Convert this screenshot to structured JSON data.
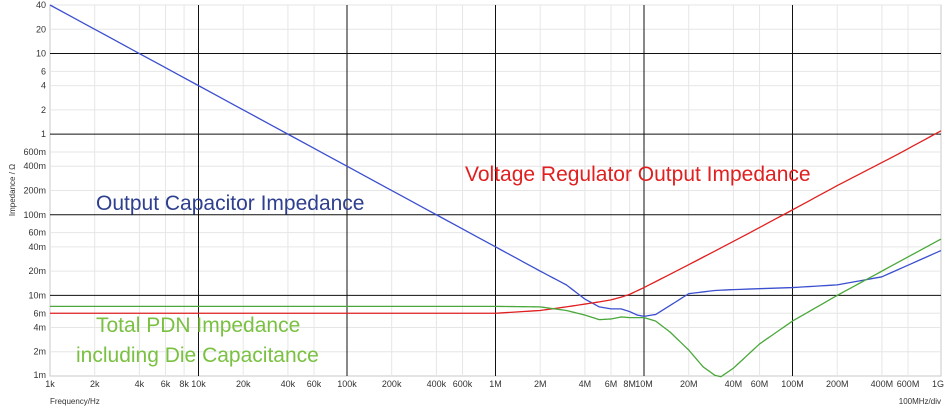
{
  "chart_data": {
    "type": "line",
    "xscale": "log",
    "yscale": "log",
    "xlabel": "Frequency/Hz",
    "ylabel": "Impedance / Ω",
    "xdiv_label": "100MHz/div",
    "xlim": [
      1000,
      1000000000
    ],
    "ylim": [
      0.001,
      40
    ],
    "x_major_ticks": [
      {
        "v": 1000,
        "label": "1k"
      },
      {
        "v": 10000,
        "label": "10k"
      },
      {
        "v": 100000,
        "label": "100k"
      },
      {
        "v": 1000000,
        "label": "1M"
      },
      {
        "v": 10000000,
        "label": "10M"
      },
      {
        "v": 100000000,
        "label": "100M"
      },
      {
        "v": 1000000000,
        "label": "1G"
      }
    ],
    "x_minor_ticks": [
      {
        "v": 2000,
        "label": "2k"
      },
      {
        "v": 4000,
        "label": "4k"
      },
      {
        "v": 6000,
        "label": "6k"
      },
      {
        "v": 8000,
        "label": "8k"
      },
      {
        "v": 20000,
        "label": "20k"
      },
      {
        "v": 40000,
        "label": "40k"
      },
      {
        "v": 60000,
        "label": "60k"
      },
      {
        "v": 200000,
        "label": "200k"
      },
      {
        "v": 400000,
        "label": "400k"
      },
      {
        "v": 600000,
        "label": "600k"
      },
      {
        "v": 2000000,
        "label": "2M"
      },
      {
        "v": 4000000,
        "label": "4M"
      },
      {
        "v": 6000000,
        "label": "6M"
      },
      {
        "v": 8000000,
        "label": "8M"
      },
      {
        "v": 20000000,
        "label": "20M"
      },
      {
        "v": 40000000,
        "label": "40M"
      },
      {
        "v": 60000000,
        "label": "60M"
      },
      {
        "v": 200000000,
        "label": "200M"
      },
      {
        "v": 400000000,
        "label": "400M"
      },
      {
        "v": 600000000,
        "label": "600M"
      }
    ],
    "y_major_ticks": [
      {
        "v": 0.001,
        "label": "1m"
      },
      {
        "v": 0.01,
        "label": "10m"
      },
      {
        "v": 0.1,
        "label": "100m"
      },
      {
        "v": 1,
        "label": "1"
      },
      {
        "v": 10,
        "label": "10"
      }
    ],
    "y_minor_ticks": [
      {
        "v": 0.002,
        "label": "2m"
      },
      {
        "v": 0.004,
        "label": "4m"
      },
      {
        "v": 0.006,
        "label": "6m"
      },
      {
        "v": 0.02,
        "label": "20m"
      },
      {
        "v": 0.04,
        "label": "40m"
      },
      {
        "v": 0.06,
        "label": "60m"
      },
      {
        "v": 0.2,
        "label": "200m"
      },
      {
        "v": 0.4,
        "label": "400m"
      },
      {
        "v": 0.6,
        "label": "600m"
      },
      {
        "v": 2,
        "label": "2"
      },
      {
        "v": 4,
        "label": "4"
      },
      {
        "v": 6,
        "label": "6"
      },
      {
        "v": 20,
        "label": "20"
      },
      {
        "v": 40,
        "label": "40"
      }
    ],
    "grid": true,
    "series": [
      {
        "name": "Output Capacitor Impedance",
        "color": "#3b4fcf",
        "x": [
          1000,
          10000,
          100000,
          1000000,
          2000000,
          3000000,
          4000000,
          5000000,
          6000000,
          7000000,
          8000000,
          9000000,
          10000000,
          12000000,
          15000000,
          20000000,
          30000000,
          40000000,
          100000000,
          200000000,
          400000000,
          1000000000
        ],
        "y": [
          40,
          4,
          0.4,
          0.04,
          0.02,
          0.0135,
          0.009,
          0.0072,
          0.0068,
          0.0068,
          0.0063,
          0.0057,
          0.0055,
          0.0058,
          0.0075,
          0.0105,
          0.0115,
          0.0118,
          0.0125,
          0.0135,
          0.017,
          0.036
        ]
      },
      {
        "name": "Voltage Regulator Output Impedance",
        "color": "#e02020",
        "x": [
          1000,
          100000,
          1000000,
          2000000,
          3000000,
          4000000,
          5000000,
          6000000,
          7000000,
          8000000,
          10000000,
          20000000,
          50000000,
          100000000,
          200000000,
          500000000,
          1000000000
        ],
        "y": [
          0.006,
          0.006,
          0.006,
          0.0065,
          0.0072,
          0.0078,
          0.0083,
          0.0088,
          0.0095,
          0.0103,
          0.0125,
          0.024,
          0.058,
          0.115,
          0.23,
          0.55,
          1.1
        ]
      },
      {
        "name": "Total PDN Impedance including Die Capacitance",
        "color": "#4aa83a",
        "x": [
          1000,
          100000,
          1000000,
          2000000,
          3000000,
          4000000,
          5000000,
          6000000,
          7000000,
          8000000,
          10000000,
          12000000,
          15000000,
          20000000,
          25000000,
          30000000,
          33000000,
          40000000,
          60000000,
          100000000,
          200000000,
          400000000,
          1000000000
        ],
        "y": [
          0.0073,
          0.0073,
          0.0073,
          0.0072,
          0.0065,
          0.0057,
          0.005,
          0.0051,
          0.0054,
          0.0053,
          0.0053,
          0.0048,
          0.0035,
          0.0021,
          0.0013,
          0.00102,
          0.00098,
          0.00125,
          0.0025,
          0.0048,
          0.01,
          0.02,
          0.05
        ]
      }
    ],
    "annotations": [
      {
        "text": "Output Capacitor Impedance",
        "color": "#2e3f8f"
      },
      {
        "text": "Voltage Regulator Output Impedance",
        "color": "#e02020"
      },
      {
        "text": "Total PDN Impedance",
        "color": "#7ac142"
      },
      {
        "text": "including Die Capacitance",
        "color": "#7ac142"
      }
    ]
  }
}
